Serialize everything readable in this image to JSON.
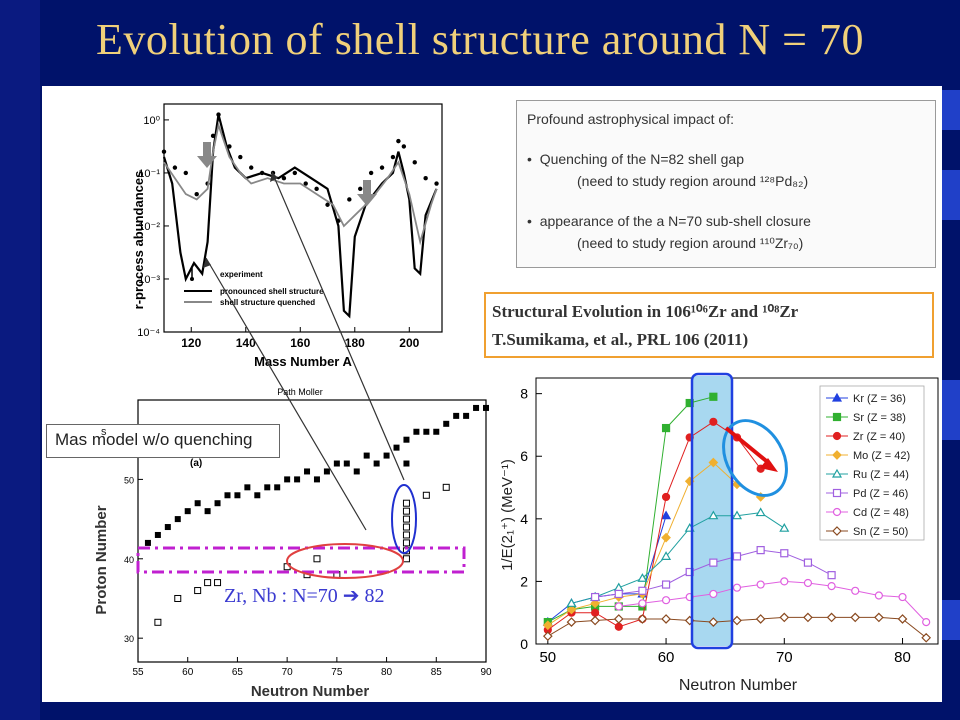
{
  "slide": {
    "title": "Evolution of shell structure around N = 70",
    "colors": {
      "background": "#00126a",
      "title": "#f0d07a",
      "accent": "#3a3ad0"
    }
  },
  "info_box": {
    "title": "Profound astrophysical impact of:",
    "bullet1": "Quenching of the N=82 shell gap",
    "bullet1_sub": "(need to study region around ¹²⁸Pd₈₂)",
    "bullet2": "appearance of the a N=70 sub-shell closure",
    "bullet2_sub": "(need to study region around ¹¹⁰Zr₇₀)"
  },
  "reference": {
    "line1": "Structural Evolution in 106¹⁰⁶Zr and ¹⁰⁸Zr",
    "line2": "T.Sumikama, et  al., PRL 106 (2011)"
  },
  "model_label": {
    "text": "Mas model w/o quenching",
    "small": "s"
  },
  "nuclide_label": "Zr, Nb : N=70 ➔ 82",
  "chart_data": [
    {
      "type": "line",
      "xlabel": "Mass Number A",
      "ylabel": "r-process abundances",
      "xticks": [
        "120",
        "140",
        "160",
        "180",
        "200"
      ],
      "yticks": [
        "10⁰",
        "10⁻¹",
        "10⁻²",
        "10⁻³",
        "10⁻⁴"
      ],
      "xlim": [
        110,
        212
      ],
      "ylog_range": [
        -4,
        0.3
      ],
      "legend": [
        "experiment",
        "pronounced shell structure",
        "shell structure quenched"
      ],
      "series": [
        {
          "name": "experiment",
          "style": "dots",
          "x": [
            110,
            114,
            118,
            122,
            126,
            128,
            130,
            134,
            138,
            142,
            146,
            150,
            154,
            158,
            162,
            166,
            170,
            174,
            178,
            182,
            186,
            190,
            194,
            196,
            198,
            202,
            206,
            210
          ],
          "y": [
            -0.6,
            -0.9,
            -1.0,
            -1.4,
            -1.2,
            -0.3,
            0.1,
            -0.5,
            -0.7,
            -0.9,
            -1.0,
            -1.0,
            -1.1,
            -1.0,
            -1.2,
            -1.3,
            -1.6,
            -1.9,
            -1.5,
            -1.3,
            -1.0,
            -0.9,
            -0.7,
            -0.4,
            -0.5,
            -0.8,
            -1.1,
            -1.2
          ]
        },
        {
          "name": "pronounced shell structure",
          "x": [
            110,
            113,
            116,
            118,
            121,
            124,
            126,
            128,
            130,
            133,
            136,
            140,
            146,
            152,
            158,
            164,
            170,
            174,
            176,
            178,
            180,
            184,
            190,
            194,
            196,
            198,
            200,
            202,
            204,
            206,
            210
          ],
          "y": [
            -0.7,
            -1.2,
            -2.5,
            -3.0,
            -2.7,
            -2.9,
            -2.3,
            -0.6,
            0.1,
            -0.5,
            -0.9,
            -1.1,
            -1.0,
            -1.1,
            -0.9,
            -1.1,
            -1.3,
            -2.0,
            -3.6,
            -3.7,
            -2.2,
            -1.6,
            -1.2,
            -1.0,
            -0.6,
            -1.0,
            -1.5,
            -2.8,
            -2.9,
            -1.8,
            -1.3
          ]
        },
        {
          "name": "shell structure quenched",
          "x": [
            110,
            114,
            118,
            122,
            126,
            128,
            130,
            134,
            138,
            142,
            148,
            154,
            160,
            166,
            172,
            176,
            180,
            186,
            192,
            196,
            200,
            204,
            208,
            210
          ],
          "y": [
            -0.8,
            -1.1,
            -1.4,
            -1.5,
            -1.3,
            -0.6,
            -0.1,
            -0.7,
            -1.0,
            -1.2,
            -1.1,
            -1.2,
            -1.2,
            -1.4,
            -1.6,
            -2.0,
            -1.8,
            -1.5,
            -1.1,
            -0.8,
            -1.4,
            -2.3,
            -1.6,
            -1.3
          ]
        }
      ]
    },
    {
      "type": "scatter",
      "title": "Path Moller",
      "panel_label": "(a)",
      "xlabel": "Neutron Number",
      "ylabel": "Proton Number",
      "xticks": [
        "55",
        "60",
        "65",
        "70",
        "75",
        "80",
        "85",
        "90"
      ],
      "yticks": [
        "30",
        "40",
        "50"
      ],
      "xlim": [
        55,
        90
      ],
      "ylim": [
        27,
        60
      ],
      "filled": {
        "x": [
          56,
          57,
          58,
          59,
          60,
          61,
          62,
          63,
          64,
          65,
          66,
          67,
          68,
          69,
          70,
          71,
          72,
          73,
          74,
          75,
          76,
          77,
          78,
          79,
          80,
          81,
          82,
          82,
          83,
          84,
          85,
          86,
          87,
          88,
          89,
          90
        ],
        "y": [
          42,
          43,
          44,
          45,
          46,
          47,
          46,
          47,
          48,
          48,
          49,
          48,
          49,
          49,
          50,
          50,
          51,
          50,
          51,
          52,
          52,
          51,
          53,
          52,
          53,
          54,
          52,
          55,
          56,
          56,
          56,
          57,
          58,
          58,
          59,
          59
        ]
      },
      "open": {
        "x": [
          57,
          59,
          61,
          62,
          63,
          70,
          72,
          73,
          75,
          82,
          82,
          82,
          82,
          82,
          82,
          82,
          82,
          84,
          86
        ],
        "y": [
          32,
          35,
          36,
          37,
          37,
          39,
          38,
          40,
          38,
          40,
          41,
          42,
          43,
          44,
          45,
          46,
          47,
          48,
          49
        ]
      }
    },
    {
      "type": "line",
      "xlabel": "Neutron Number",
      "ylabel": "1/E(2₁⁺)  (MeV⁻¹)",
      "xticks": [
        "50",
        "60",
        "70",
        "80"
      ],
      "yticks": [
        "0",
        "2",
        "4",
        "6",
        "8"
      ],
      "xlim": [
        49,
        83
      ],
      "ylim": [
        0,
        8.5
      ],
      "legend_position": "top-right",
      "series": [
        {
          "name": "Kr (Z = 36)",
          "color": "#2040e0",
          "marker": "tri-filled",
          "x": [
            50,
            52,
            54,
            56,
            58,
            60
          ],
          "y": [
            0.7,
            1.3,
            1.5,
            1.6,
            1.6,
            4.1
          ]
        },
        {
          "name": "Sr (Z = 38)",
          "color": "#30b030",
          "marker": "sq-filled",
          "x": [
            50,
            52,
            54,
            56,
            58,
            60,
            62,
            64
          ],
          "y": [
            0.7,
            1.1,
            1.2,
            1.2,
            1.2,
            6.9,
            7.7,
            7.9
          ]
        },
        {
          "name": "Zr (Z = 40)",
          "color": "#e02020",
          "marker": "circ-filled",
          "x": [
            50,
            52,
            54,
            56,
            58,
            60,
            62,
            64,
            66,
            68
          ],
          "y": [
            0.45,
            1.0,
            1.0,
            0.55,
            0.8,
            4.7,
            6.6,
            7.1,
            6.6,
            5.6
          ]
        },
        {
          "name": "Mo (Z = 42)",
          "color": "#f0b030",
          "marker": "dia-filled",
          "x": [
            50,
            52,
            54,
            56,
            58,
            60,
            62,
            64,
            66,
            68
          ],
          "y": [
            0.6,
            1.1,
            1.3,
            1.5,
            1.6,
            3.4,
            5.2,
            5.8,
            5.1,
            4.7
          ]
        },
        {
          "name": "Ru (Z = 44)",
          "color": "#20a0a0",
          "marker": "tri-open",
          "x": [
            52,
            54,
            56,
            58,
            60,
            62,
            64,
            66,
            68,
            70
          ],
          "y": [
            1.3,
            1.5,
            1.8,
            2.1,
            2.8,
            3.7,
            4.1,
            4.1,
            4.2,
            3.7
          ]
        },
        {
          "name": "Pd (Z = 46)",
          "color": "#a060e0",
          "marker": "sq-open",
          "x": [
            54,
            56,
            58,
            60,
            62,
            64,
            66,
            68,
            70,
            72,
            74
          ],
          "y": [
            1.5,
            1.6,
            1.7,
            1.9,
            2.3,
            2.6,
            2.8,
            3.0,
            2.9,
            2.6,
            2.2
          ]
        },
        {
          "name": "Cd (Z = 48)",
          "color": "#e060e0",
          "marker": "circ-open",
          "x": [
            56,
            58,
            60,
            62,
            64,
            66,
            68,
            70,
            72,
            74,
            76,
            78,
            80,
            82
          ],
          "y": [
            1.2,
            1.3,
            1.4,
            1.5,
            1.6,
            1.8,
            1.9,
            2.0,
            1.95,
            1.85,
            1.7,
            1.55,
            1.5,
            0.7
          ]
        },
        {
          "name": "Sn (Z = 50)",
          "color": "#8a4a20",
          "marker": "dia-open",
          "x": [
            50,
            52,
            54,
            56,
            58,
            60,
            62,
            64,
            66,
            68,
            70,
            72,
            74,
            76,
            78,
            80,
            82
          ],
          "y": [
            0.25,
            0.7,
            0.75,
            0.8,
            0.8,
            0.8,
            0.75,
            0.7,
            0.75,
            0.8,
            0.85,
            0.85,
            0.85,
            0.85,
            0.85,
            0.8,
            0.2
          ]
        }
      ]
    }
  ]
}
